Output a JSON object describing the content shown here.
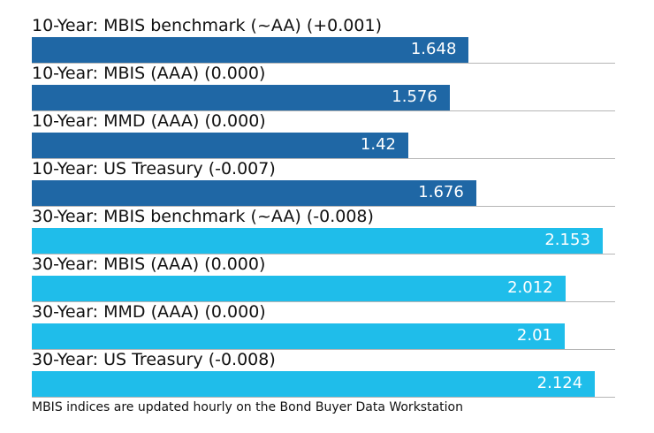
{
  "chart_data": {
    "type": "bar",
    "orientation": "horizontal",
    "categories": [
      "10-Year: MBIS benchmark (~AA) (+0.001)",
      "10-Year: MBIS (AAA) (0.000)",
      "10-Year: MMD (AAA) (0.000)",
      "10-Year: US Treasury (-0.007)",
      "30-Year: MBIS benchmark (~AA) (-0.008)",
      "30-Year: MBIS (AAA) (0.000)",
      "30-Year: MMD (AAA) (0.000)",
      "30-Year: US Treasury (-0.008)"
    ],
    "values": [
      1.648,
      1.576,
      1.42,
      1.676,
      2.153,
      2.012,
      2.01,
      2.124
    ],
    "value_labels": [
      "1.648",
      "1.576",
      "1.42",
      "1.676",
      "2.153",
      "2.012",
      "2.01",
      "2.124"
    ],
    "bar_colors": [
      "#1f67a5",
      "#1f67a5",
      "#1f67a5",
      "#1f67a5",
      "#1fbdea",
      "#1fbdea",
      "#1fbdea",
      "#1fbdea"
    ],
    "xlim": [
      0,
      2.2
    ],
    "grid": false,
    "title": "",
    "xlabel": "",
    "ylabel": ""
  },
  "footnote": "MBIS indices are updated hourly on the Bond Buyer Data Workstation",
  "colors": {
    "ten_year": "#1f67a5",
    "thirty_year": "#1fbdea",
    "rule": "#b5b5b5"
  }
}
